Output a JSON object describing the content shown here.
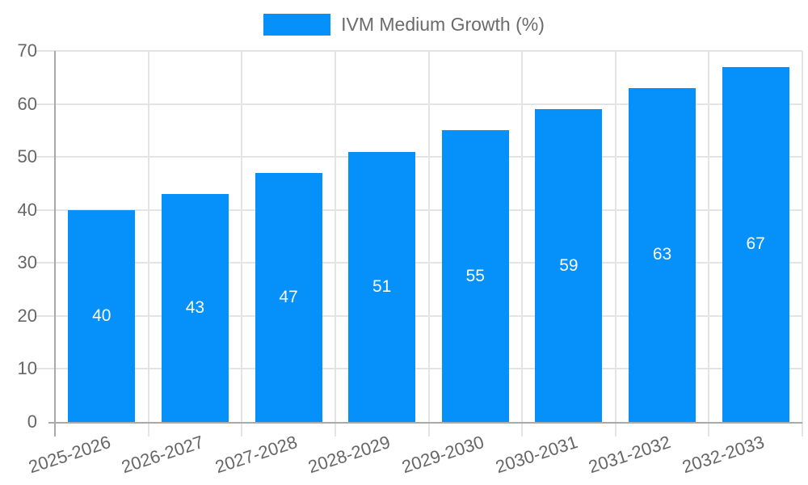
{
  "chart_data": {
    "type": "bar",
    "title": "",
    "categories": [
      "2025-2026",
      "2026-2027",
      "2027-2028",
      "2028-2029",
      "2029-2030",
      "2030-2031",
      "2031-2032",
      "2032-2033"
    ],
    "series": [
      {
        "name": "IVM Medium Growth (%)",
        "values": [
          40,
          43,
          47,
          51,
          55,
          59,
          63,
          67
        ]
      }
    ],
    "value_labels": [
      "40",
      "43",
      "47",
      "51",
      "55",
      "59",
      "63",
      "67"
    ],
    "ytick_labels": [
      "0",
      "10",
      "20",
      "30",
      "40",
      "50",
      "60",
      "70"
    ],
    "ylim": [
      0,
      70
    ],
    "ytick_step": 10,
    "grid": "on",
    "legend_position": "top-center",
    "colors": {
      "bar": "#0590fa",
      "grid": "#e4e4e4",
      "axis": "#a9a9a9",
      "tick_text": "#666666",
      "legend_text": "#6b6b6b",
      "value_label": "#ffffff"
    }
  }
}
